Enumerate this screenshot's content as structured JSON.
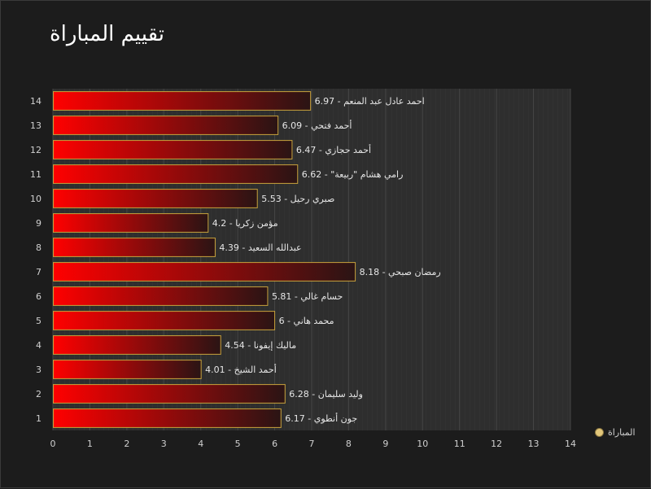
{
  "chart_data": {
    "type": "bar",
    "orientation": "horizontal",
    "title": "تقييم المباراة",
    "categories": [
      "1",
      "2",
      "3",
      "4",
      "5",
      "6",
      "7",
      "8",
      "9",
      "10",
      "11",
      "12",
      "13",
      "14"
    ],
    "bar_labels": [
      "جون أنطوي - 6.17",
      "وليد سليمان  - 6.28",
      "أحمد الشيخ - 4.01",
      "ماليك إيفونا - 4.54",
      "محمد هاني - 6",
      "حسام غالي - 5.81",
      "رمضان صبحي - 8.18",
      "عبدالله السعيد  - 4.39",
      "مؤمن زكريا  - 4.2",
      "صبري رحيل - 5.53",
      "رامي هشام \"ربيعة\" - 6.62",
      "أحمد حجازي - 6.47",
      "أحمد فتحي - 6.09",
      "احمد عادل عبد المنعم - 6.97"
    ],
    "series": [
      {
        "name": "المباراة",
        "values": [
          6.17,
          6.28,
          4.01,
          4.54,
          6,
          5.81,
          8.18,
          4.39,
          4.2,
          5.53,
          6.62,
          6.47,
          6.09,
          6.97
        ]
      }
    ],
    "xlim": [
      0,
      14
    ],
    "xticks": [
      "0",
      "1",
      "2",
      "3",
      "4",
      "5",
      "6",
      "7",
      "8",
      "9",
      "10",
      "11",
      "12",
      "13",
      "14"
    ],
    "grid": true,
    "legend_position": "bottom-right",
    "colors": {
      "bar_start": "#ff0000",
      "bar_end": "#2a1414",
      "bar_border": "#c8a23c",
      "plot_bg": "#2e2e2e",
      "legend_marker": "#e2c77a"
    }
  }
}
